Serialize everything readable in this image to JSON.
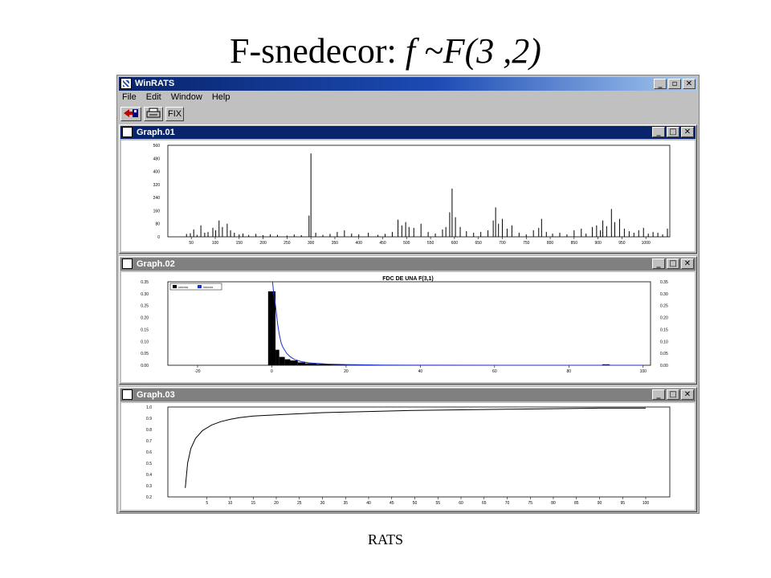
{
  "slide": {
    "title_text": "F-snedecor: ",
    "title_math": "f ~F(3 ,2)",
    "footer": "RATS"
  },
  "app": {
    "title": "WinRATS",
    "menu": [
      "File",
      "Edit",
      "Window",
      "Help"
    ],
    "toolbar": {
      "fix_label": "FIX"
    }
  },
  "windows": [
    {
      "title": "Graph.01"
    },
    {
      "title": "Graph.02",
      "plot_title": "FDC DE UNA F(3,1)"
    },
    {
      "title": "Graph.03"
    }
  ],
  "chart_data": [
    {
      "type": "bar",
      "title": "",
      "x_ticks": [
        50,
        100,
        150,
        200,
        250,
        300,
        350,
        400,
        450,
        500,
        550,
        600,
        650,
        700,
        750,
        800,
        850,
        900,
        950,
        1000
      ],
      "y_ticks": [
        "0",
        "80",
        "160",
        "240",
        "320",
        "400",
        "480",
        "560"
      ],
      "xlim": [
        1,
        1050
      ],
      "ylim": [
        0,
        560
      ],
      "spikes": [
        [
          40,
          18
        ],
        [
          48,
          22
        ],
        [
          55,
          45
        ],
        [
          62,
          12
        ],
        [
          70,
          70
        ],
        [
          78,
          25
        ],
        [
          85,
          30
        ],
        [
          95,
          55
        ],
        [
          101,
          40
        ],
        [
          108,
          100
        ],
        [
          115,
          60
        ],
        [
          125,
          80
        ],
        [
          132,
          40
        ],
        [
          140,
          25
        ],
        [
          150,
          15
        ],
        [
          158,
          20
        ],
        [
          170,
          12
        ],
        [
          185,
          18
        ],
        [
          200,
          10
        ],
        [
          215,
          15
        ],
        [
          230,
          12
        ],
        [
          250,
          8
        ],
        [
          265,
          14
        ],
        [
          280,
          10
        ],
        [
          296,
          130
        ],
        [
          300,
          510
        ],
        [
          310,
          25
        ],
        [
          325,
          12
        ],
        [
          340,
          18
        ],
        [
          355,
          30
        ],
        [
          370,
          40
        ],
        [
          385,
          20
        ],
        [
          400,
          15
        ],
        [
          420,
          25
        ],
        [
          440,
          12
        ],
        [
          455,
          18
        ],
        [
          470,
          30
        ],
        [
          482,
          105
        ],
        [
          490,
          70
        ],
        [
          498,
          90
        ],
        [
          505,
          60
        ],
        [
          515,
          55
        ],
        [
          530,
          80
        ],
        [
          545,
          30
        ],
        [
          560,
          20
        ],
        [
          575,
          45
        ],
        [
          582,
          60
        ],
        [
          590,
          150
        ],
        [
          595,
          295
        ],
        [
          602,
          120
        ],
        [
          612,
          60
        ],
        [
          625,
          35
        ],
        [
          640,
          25
        ],
        [
          655,
          30
        ],
        [
          670,
          40
        ],
        [
          681,
          100
        ],
        [
          686,
          180
        ],
        [
          692,
          80
        ],
        [
          700,
          110
        ],
        [
          710,
          50
        ],
        [
          720,
          70
        ],
        [
          735,
          25
        ],
        [
          750,
          15
        ],
        [
          765,
          40
        ],
        [
          776,
          55
        ],
        [
          782,
          110
        ],
        [
          792,
          30
        ],
        [
          805,
          20
        ],
        [
          820,
          25
        ],
        [
          835,
          15
        ],
        [
          850,
          40
        ],
        [
          865,
          50
        ],
        [
          875,
          20
        ],
        [
          888,
          60
        ],
        [
          897,
          70
        ],
        [
          905,
          40
        ],
        [
          910,
          100
        ],
        [
          918,
          65
        ],
        [
          928,
          170
        ],
        [
          935,
          90
        ],
        [
          945,
          110
        ],
        [
          955,
          50
        ],
        [
          965,
          35
        ],
        [
          975,
          25
        ],
        [
          985,
          40
        ],
        [
          995,
          55
        ],
        [
          1005,
          20
        ],
        [
          1015,
          30
        ],
        [
          1025,
          25
        ],
        [
          1035,
          15
        ],
        [
          1045,
          50
        ]
      ]
    },
    {
      "type": "bar",
      "title": "FDC DE UNA F(3,1)",
      "xlim": [
        -28,
        102
      ],
      "ylim": [
        0,
        0.35
      ],
      "x_ticks": [
        -20,
        0,
        20,
        40,
        60,
        80,
        100
      ],
      "y_ticks": [
        "0.00",
        "0.05",
        "0.10",
        "0.15",
        "0.20",
        "0.25",
        "0.30",
        "0.35"
      ],
      "legend": [
        "xxxxxxx",
        "xxxxxxx"
      ],
      "series_colors": [
        "#000000",
        "#1a2fcf"
      ],
      "bins": [
        [
          -1,
          1,
          0.31
        ],
        [
          1,
          2,
          0.065
        ],
        [
          2,
          3.5,
          0.035
        ],
        [
          3.5,
          5,
          0.025
        ],
        [
          5,
          7,
          0.02
        ],
        [
          7,
          9,
          0.012
        ],
        [
          9,
          12,
          0.008
        ],
        [
          12,
          16,
          0.005
        ],
        [
          16,
          20,
          0.003
        ],
        [
          89,
          91,
          0.004
        ]
      ],
      "curve": [
        [
          0.2,
          0.35
        ],
        [
          0.5,
          0.3
        ],
        [
          1,
          0.25
        ],
        [
          1.5,
          0.18
        ],
        [
          2,
          0.13
        ],
        [
          2.5,
          0.095
        ],
        [
          3,
          0.075
        ],
        [
          4,
          0.05
        ],
        [
          5,
          0.035
        ],
        [
          6,
          0.025
        ],
        [
          8,
          0.015
        ],
        [
          10,
          0.01
        ],
        [
          15,
          0.005
        ],
        [
          20,
          0.003
        ],
        [
          30,
          0.001
        ],
        [
          40,
          0.0005
        ],
        [
          100,
          0.0
        ]
      ]
    },
    {
      "type": "line",
      "title": "",
      "xlim": [
        0,
        100
      ],
      "ylim": [
        0.2,
        1.0
      ],
      "x_ticks": [
        5,
        10,
        15,
        20,
        25,
        30,
        35,
        40,
        45,
        50,
        55,
        60,
        65,
        70,
        75,
        80,
        85,
        90,
        95,
        100
      ],
      "y_ticks": [
        "0.2",
        "0.3",
        "0.4",
        "0.5",
        "0.6",
        "0.7",
        "0.8",
        "0.9",
        "1.0"
      ],
      "points": [
        [
          0.3,
          0.28
        ],
        [
          0.8,
          0.5
        ],
        [
          1.5,
          0.63
        ],
        [
          2.5,
          0.72
        ],
        [
          4,
          0.79
        ],
        [
          6,
          0.84
        ],
        [
          8,
          0.87
        ],
        [
          10,
          0.89
        ],
        [
          12,
          0.905
        ],
        [
          15,
          0.92
        ],
        [
          20,
          0.93
        ],
        [
          25,
          0.94
        ],
        [
          30,
          0.95
        ],
        [
          40,
          0.96
        ],
        [
          50,
          0.97
        ],
        [
          60,
          0.975
        ],
        [
          70,
          0.98
        ],
        [
          80,
          0.985
        ],
        [
          90,
          0.99
        ],
        [
          100,
          0.99
        ]
      ]
    }
  ]
}
